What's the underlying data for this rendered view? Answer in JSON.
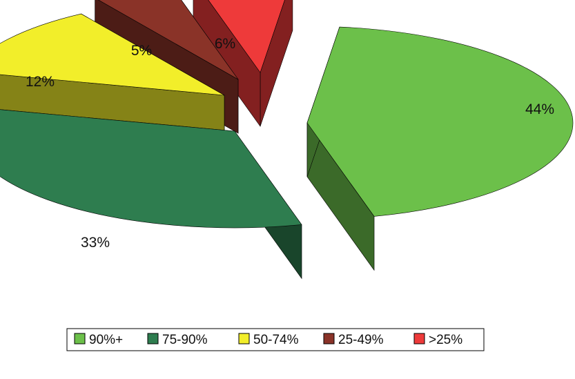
{
  "chart_data": {
    "type": "pie",
    "style": "3d-exploded",
    "categories": [
      "90%+",
      "75-90%",
      "50-74%",
      "25-49%",
      ">25%"
    ],
    "values": [
      44,
      33,
      12,
      5,
      6
    ],
    "value_labels": [
      "44%",
      "33%",
      "12%",
      "5%",
      "6%"
    ],
    "colors": [
      "#6cc04a",
      "#2e7d4f",
      "#f2ee2a",
      "#8a3328",
      "#ee3a3a"
    ],
    "legend_position": "bottom"
  }
}
